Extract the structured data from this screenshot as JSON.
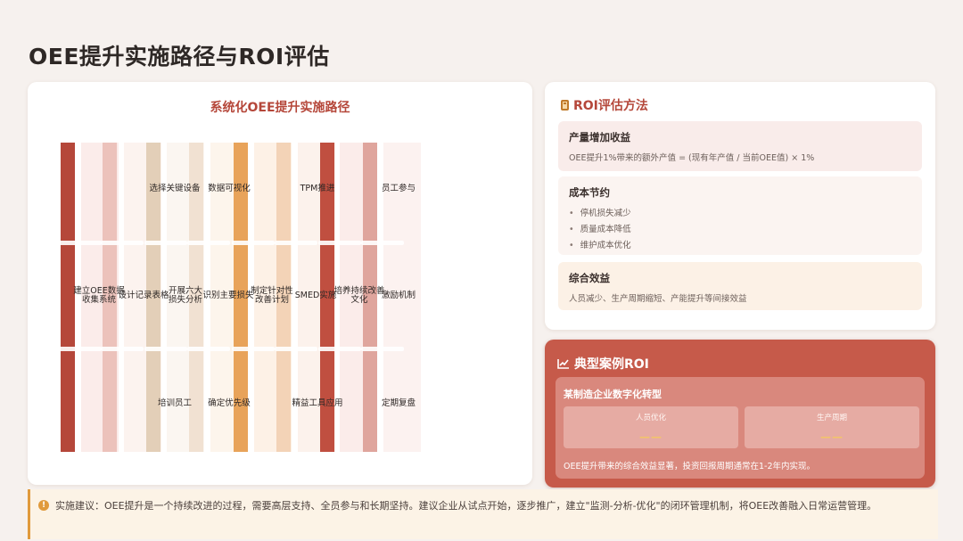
{
  "page": {
    "title": "OEE提升实施路径与ROI评估"
  },
  "path": {
    "title": "系统化OEE提升实施路径",
    "row_top": [
      "",
      "选择关键设备",
      "",
      "数据可视化",
      "",
      "TPM推进",
      "",
      "员工参与"
    ],
    "row_mid": [
      [
        "建立OEE数据",
        "收集系统"
      ],
      [
        "设计记录表格"
      ],
      [
        "开展六大",
        "损失分析"
      ],
      [
        "识别主要损失"
      ],
      [
        "制定针对性",
        "改善计划"
      ],
      [
        "SMED实施"
      ],
      [
        "培养持续改善",
        "文化"
      ],
      [
        "激励机制"
      ]
    ],
    "row_bot": [
      "",
      "培训员工",
      "",
      "确定优先级",
      "",
      "精益工具应用",
      "",
      "定期复盘"
    ],
    "colors": [
      "#b5473a",
      "#ecc2bb",
      "#e3cfb8",
      "#f1e1d2",
      "#e8a35a",
      "#f3d3b7",
      "#c04f40",
      "#dfa59d"
    ]
  },
  "roi": {
    "title": "ROI评估方法",
    "blocks": [
      {
        "title": "产量增加收益",
        "text": "OEE提升1%带来的额外产值 = (现有年产值 / 当前OEE值) × 1%"
      },
      {
        "title": "成本节约",
        "items": [
          "停机损失减少",
          "质量成本降低",
          "维护成本优化"
        ]
      },
      {
        "title": "综合效益",
        "text": "人员减少、生产周期缩短、产能提升等间接效益"
      }
    ]
  },
  "case": {
    "title": "典型案例ROI",
    "subtitle": "某制造企业数字化转型",
    "metrics": [
      {
        "label": "人员优化",
        "value": "——"
      },
      {
        "label": "生产周期",
        "value": "——"
      }
    ],
    "note": "OEE提升带来的综合效益显著，投资回报周期通常在1-2年内实现。"
  },
  "tip": {
    "text": "实施建议：OEE提升是一个持续改进的过程，需要高层支持、全员参与和长期坚持。建议企业从试点开始，逐步推广，建立\"监测-分析-优化\"的闭环管理机制，将OEE改善融入日常运营管理。"
  }
}
